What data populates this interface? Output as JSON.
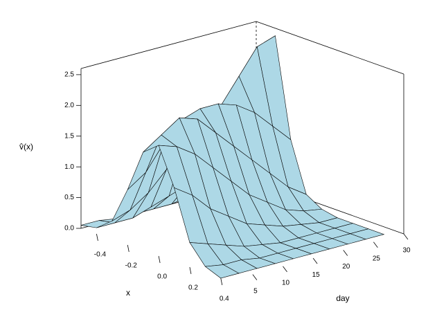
{
  "chart_data": {
    "type": "surface",
    "xlabel": "x",
    "ylabel": "day",
    "zlabel": "v̂(x)",
    "color": "#add8e6",
    "x": [
      -0.5,
      -0.4,
      -0.3,
      -0.2,
      -0.1,
      0.0,
      0.1,
      0.2,
      0.3,
      0.4
    ],
    "y": [
      1,
      4,
      7,
      10,
      13,
      16,
      19,
      22,
      25,
      28
    ],
    "z": [
      [
        0.05,
        0.1,
        0.3,
        0.9,
        1.6,
        1.8,
        1.2,
        0.4,
        0.1,
        0.0
      ],
      [
        0.05,
        0.1,
        0.4,
        1.1,
        1.8,
        1.7,
        1.0,
        0.3,
        0.05,
        0.0
      ],
      [
        0.0,
        0.1,
        0.6,
        1.5,
        2.0,
        1.5,
        0.7,
        0.2,
        0.05,
        0.0
      ],
      [
        0.0,
        0.2,
        0.9,
        1.8,
        1.9,
        1.2,
        0.5,
        0.1,
        0.0,
        0.0
      ],
      [
        0.0,
        0.3,
        1.2,
        1.9,
        1.6,
        0.9,
        0.3,
        0.05,
        0.0,
        0.0
      ],
      [
        0.0,
        0.4,
        1.5,
        1.9,
        1.3,
        0.6,
        0.2,
        0.0,
        0.0,
        0.0
      ],
      [
        0.05,
        0.6,
        1.7,
        1.8,
        1.0,
        0.4,
        0.1,
        0.0,
        0.0,
        0.0
      ],
      [
        0.1,
        0.9,
        2.1,
        1.6,
        0.7,
        0.2,
        0.05,
        0.0,
        0.0,
        0.0
      ],
      [
        0.2,
        1.3,
        2.5,
        1.3,
        0.4,
        0.1,
        0.0,
        0.0,
        0.0,
        0.0
      ],
      [
        0.3,
        1.6,
        2.6,
        1.0,
        0.2,
        0.05,
        0.0,
        0.0,
        0.0,
        0.0
      ]
    ],
    "xlim": [
      -0.5,
      0.45
    ],
    "ylim": [
      1,
      30
    ],
    "zlim": [
      0,
      2.6
    ],
    "xticks": [
      -0.4,
      -0.2,
      {
        "value": 0,
        "label": "0.0"
      },
      0.2,
      0.4
    ],
    "yticks": [
      5,
      10,
      15,
      20,
      25,
      30
    ],
    "zticks": [
      {
        "value": 0,
        "label": "0.0"
      },
      0.5,
      {
        "value": 1,
        "label": "1.0"
      },
      1.5,
      {
        "value": 2,
        "label": "2.0"
      },
      2.5
    ]
  }
}
